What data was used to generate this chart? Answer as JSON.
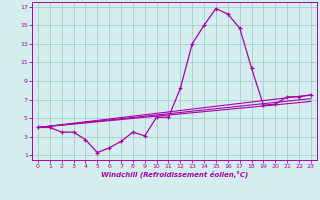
{
  "title": "",
  "xlabel": "Windchill (Refroidissement éolien,°C)",
  "bg_color": "#d4eeee",
  "grid_color": "#a8cccc",
  "line_color": "#aa00aa",
  "spine_color": "#aa00aa",
  "xlim": [
    -0.5,
    23.5
  ],
  "ylim": [
    0.5,
    17.5
  ],
  "xticks": [
    0,
    1,
    2,
    3,
    4,
    5,
    6,
    7,
    8,
    9,
    10,
    11,
    12,
    13,
    14,
    15,
    16,
    17,
    18,
    19,
    20,
    21,
    22,
    23
  ],
  "yticks": [
    1,
    3,
    5,
    7,
    9,
    11,
    13,
    15,
    17
  ],
  "line1_x": [
    0,
    1,
    2,
    3,
    4,
    5,
    6,
    7,
    8,
    9,
    10,
    11,
    12,
    13,
    14,
    15,
    16,
    17,
    18,
    19,
    20,
    21,
    22,
    23
  ],
  "line1_y": [
    4.0,
    4.0,
    3.5,
    3.5,
    2.7,
    1.3,
    1.8,
    2.5,
    3.5,
    3.1,
    5.1,
    5.1,
    8.2,
    13.0,
    15.0,
    16.8,
    16.2,
    14.7,
    10.4,
    6.4,
    6.5,
    7.3,
    7.3,
    7.5
  ],
  "line2_x": [
    0,
    23
  ],
  "line2_y": [
    4.0,
    7.5
  ],
  "line3_x": [
    0,
    23
  ],
  "line3_y": [
    4.0,
    6.8
  ],
  "line4_x": [
    0,
    23
  ],
  "line4_y": [
    4.0,
    7.1
  ]
}
